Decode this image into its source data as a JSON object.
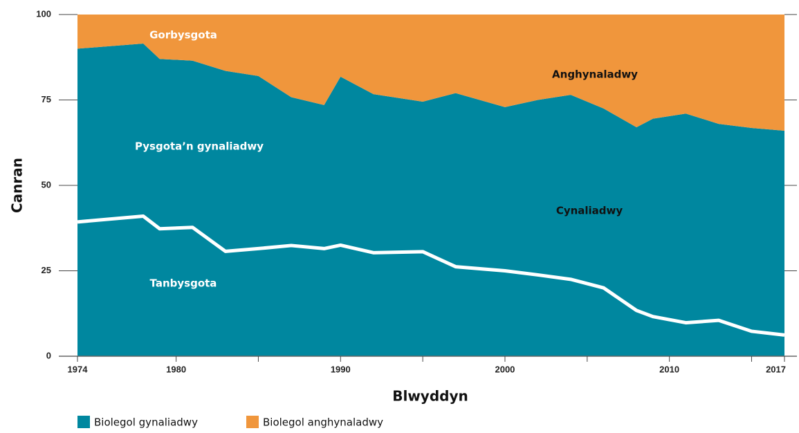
{
  "chart_data": {
    "type": "stacked_area",
    "x_label": "Blwyddyn",
    "y_label": "Canran",
    "x": [
      1974,
      1978,
      1979,
      1981,
      1983,
      1985,
      1987,
      1989,
      1990,
      1992,
      1995,
      1997,
      2000,
      2002,
      2004,
      2006,
      2008,
      2009,
      2011,
      2013,
      2015,
      2017
    ],
    "series": [
      {
        "name": "Biolegol gynaliadwy",
        "color": "#00879f",
        "values": [
          90,
          91.5,
          87,
          86.5,
          83.5,
          82,
          75.8,
          73.5,
          81.8,
          76.7,
          74.5,
          77,
          72.9,
          75,
          76.5,
          72.5,
          67,
          69.5,
          71,
          68,
          66.8,
          66
        ]
      },
      {
        "name": "Biolegol anghynaladwy",
        "color": "#f0963c",
        "values": [
          10,
          8.5,
          13,
          13.5,
          16.5,
          18,
          24.2,
          26.5,
          18.2,
          23.3,
          25.5,
          23,
          27.1,
          25,
          23.5,
          27.5,
          33,
          30.5,
          29,
          32,
          33.2,
          34
        ]
      }
    ],
    "line": {
      "color": "#ffffff",
      "values": [
        39.3,
        41,
        37.3,
        37.7,
        30.7,
        31.5,
        32.4,
        31.5,
        32.5,
        30.3,
        30.6,
        26.2,
        25,
        23.8,
        22.5,
        20,
        13.4,
        11.6,
        9.8,
        10.5,
        7.3,
        6.2
      ]
    },
    "annotations": [
      "Gorbysgota",
      "Anghynaladwy",
      "Pysgota’n gynaliadwy",
      "Cynaliadwy",
      "Tanbysgota"
    ],
    "xlim": [
      1974,
      2017
    ],
    "xticks": [
      1974,
      1980,
      1990,
      2000,
      2010,
      2017
    ],
    "xticks_minor": [
      1985,
      1995,
      2005,
      2015
    ],
    "ylim": [
      0,
      100
    ],
    "yticks": [
      0,
      25,
      50,
      75,
      100
    ]
  }
}
